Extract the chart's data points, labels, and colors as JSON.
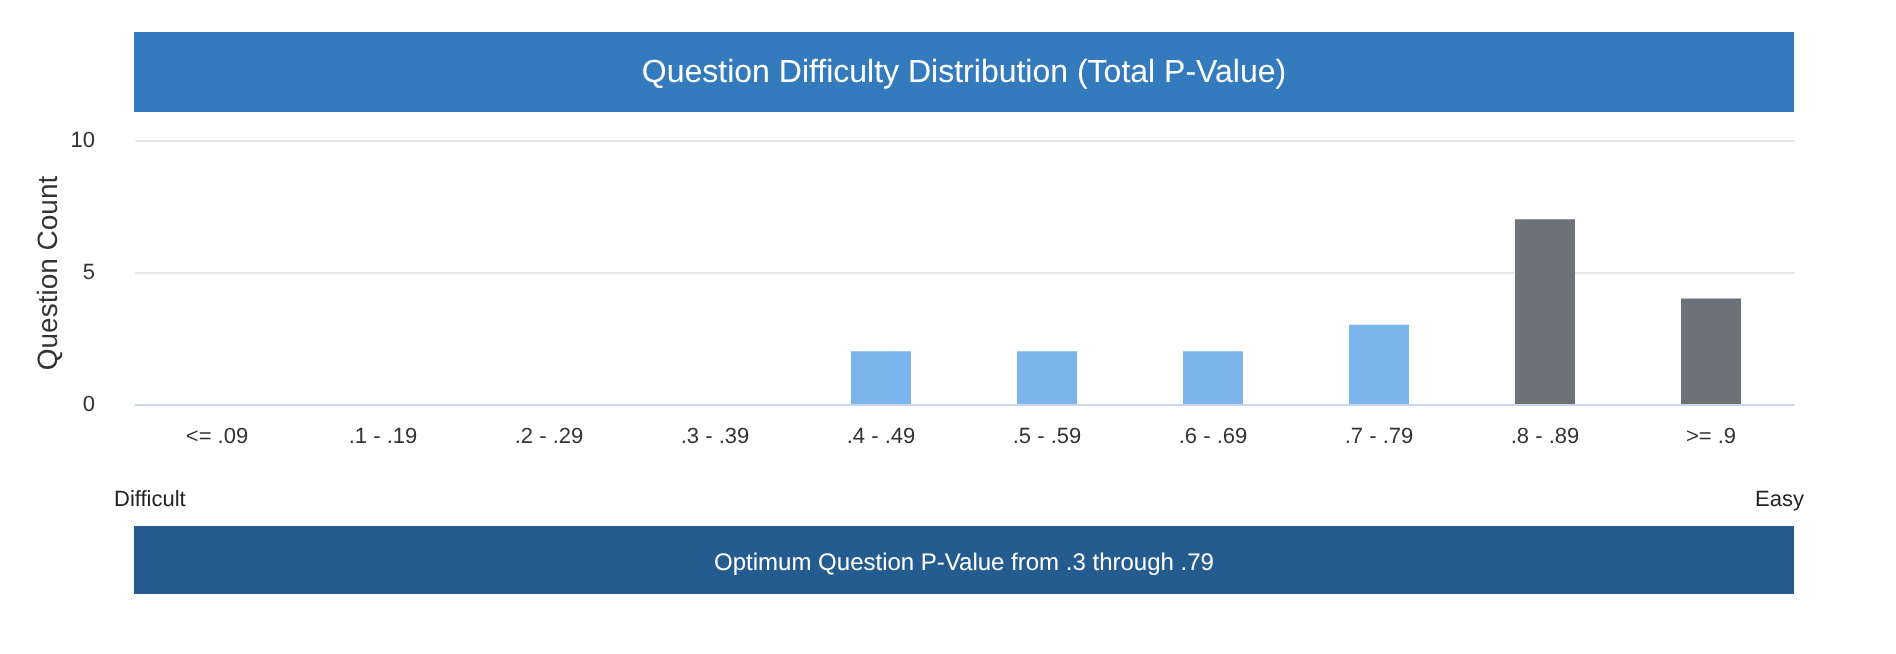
{
  "chart_data": {
    "type": "bar",
    "title": "Question Difficulty Distribution (Total P-Value)",
    "ylabel": "Question Count",
    "categories": [
      "<= .09",
      ".1 - .19",
      ".2 - .29",
      ".3 - .39",
      ".4 - .49",
      ".5 - .59",
      ".6 - .69",
      ".7 - .79",
      ".8 - .89",
      ">= .9"
    ],
    "values": [
      0,
      0,
      0,
      0,
      2,
      2,
      2,
      3,
      7,
      4
    ],
    "colors": [
      "#7cb5ec",
      "#7cb5ec",
      "#7cb5ec",
      "#7cb5ec",
      "#7cb5ec",
      "#7cb5ec",
      "#7cb5ec",
      "#7cb5ec",
      "#6d7179",
      "#6d7179"
    ],
    "ylim": [
      0,
      10
    ],
    "yticks": [
      0,
      5,
      10
    ],
    "grid": "y",
    "annotations": [
      "Difficult",
      "Easy",
      "Optimum Question P-Value from .3 through .79"
    ]
  }
}
